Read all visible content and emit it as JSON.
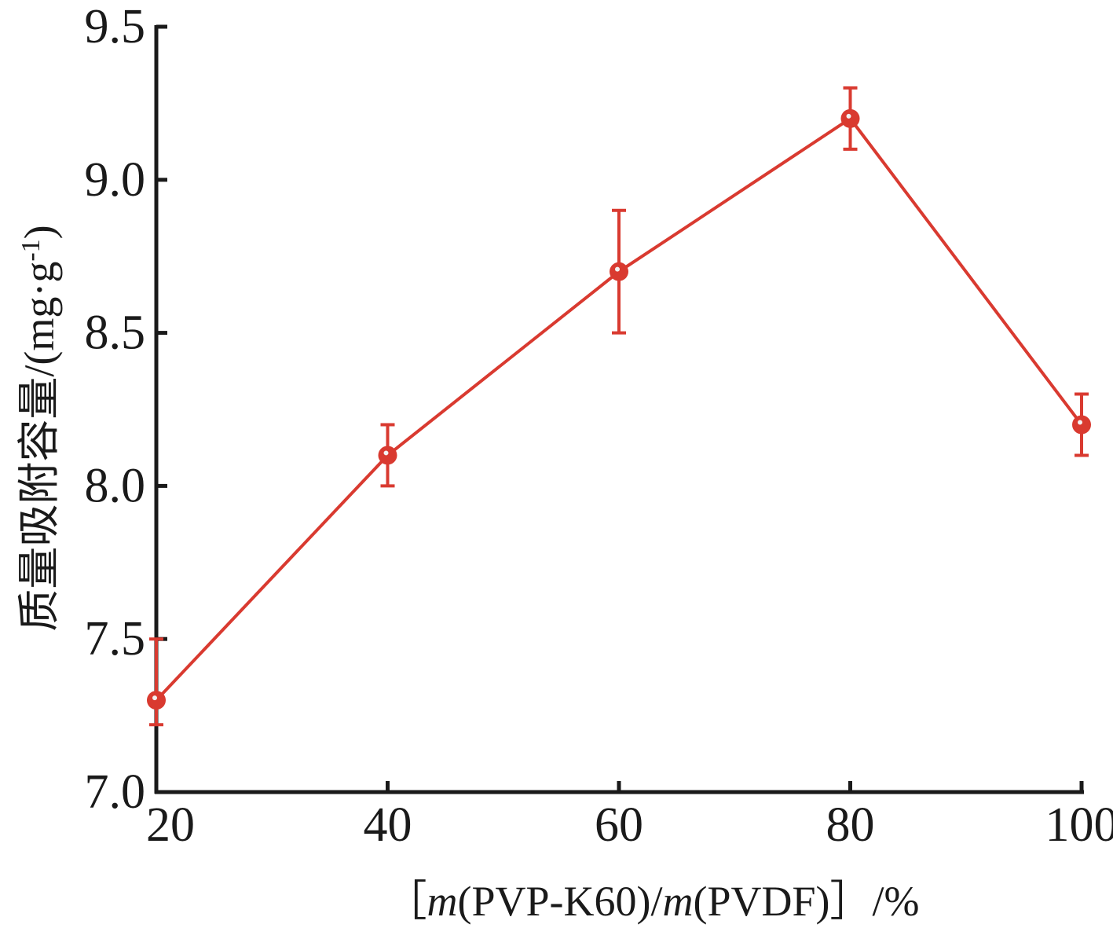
{
  "chart_data": {
    "type": "line",
    "xlabel_parts": {
      "open": "［",
      "m1": "m",
      "num": "(PVP-K60)/",
      "m2": "m",
      "den": "(PVDF)",
      "close": "］/%"
    },
    "ylabel": "质量吸附容量/(mg·g",
    "ylabel_sup": "-1",
    "ylabel_close": ")",
    "xlim": [
      20,
      100
    ],
    "ylim": [
      7.0,
      9.5
    ],
    "x_ticks": [
      "20",
      "40",
      "60",
      "80",
      "100"
    ],
    "y_ticks": [
      "7.0",
      "7.5",
      "8.0",
      "8.5",
      "9.0",
      "9.5"
    ],
    "grid": false,
    "series": [
      {
        "x": [
          20,
          40,
          60,
          80,
          100
        ],
        "y": [
          7.3,
          8.1,
          8.7,
          9.2,
          8.2
        ],
        "err_low": [
          7.22,
          8.0,
          8.5,
          9.1,
          8.1
        ],
        "err_high": [
          7.5,
          8.2,
          8.9,
          9.3,
          8.3
        ],
        "color": "#d93a30"
      }
    ]
  }
}
